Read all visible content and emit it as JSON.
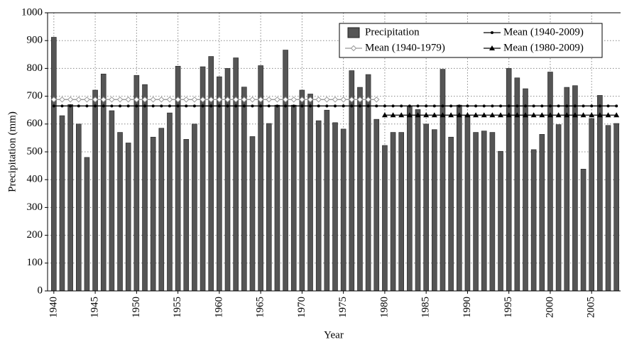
{
  "chart_data": {
    "type": "bar",
    "x_label": "Year",
    "y_label": "Precipitation (mm)",
    "categories": [
      "1940",
      null,
      null,
      null,
      null,
      "1945",
      null,
      null,
      null,
      null,
      "1950",
      null,
      null,
      null,
      null,
      "1955",
      null,
      null,
      null,
      null,
      "1960",
      null,
      null,
      null,
      null,
      "1965",
      null,
      null,
      null,
      null,
      "1970",
      null,
      null,
      null,
      null,
      "1975",
      null,
      null,
      null,
      null,
      "1980",
      null,
      null,
      null,
      null,
      "1985",
      null,
      null,
      null,
      null,
      "1990",
      null,
      null,
      null,
      null,
      "1995",
      null,
      null,
      null,
      null,
      "2000",
      null,
      null,
      null,
      null,
      "2005",
      null,
      null,
      null
    ],
    "series": [
      {
        "name": "Precipitation",
        "type": "bar",
        "color": "#555555",
        "values": [
          912,
          630,
          670,
          600,
          480,
          722,
          780,
          648,
          570,
          532,
          775,
          742,
          553,
          585,
          640,
          808,
          545,
          600,
          806,
          843,
          770,
          800,
          838,
          733,
          555,
          810,
          602,
          668,
          866,
          668,
          722,
          708,
          612,
          650,
          605,
          582,
          792,
          732,
          778,
          617,
          523,
          570,
          570,
          665,
          652,
          600,
          580,
          797,
          553,
          668,
          632,
          570,
          575,
          570,
          502,
          800,
          766,
          727,
          508,
          563,
          787,
          598,
          732,
          738,
          438,
          620,
          703,
          595,
          602
        ]
      },
      {
        "name": "Mean (1940-2009)",
        "type": "line",
        "marker": "circle",
        "color": "#000000",
        "values": [
          665,
          665,
          665,
          665,
          665,
          665,
          665,
          665,
          665,
          665,
          665,
          665,
          665,
          665,
          665,
          665,
          665,
          665,
          665,
          665,
          665,
          665,
          665,
          665,
          665,
          665,
          665,
          665,
          665,
          665,
          665,
          665,
          665,
          665,
          665,
          665,
          665,
          665,
          665,
          665,
          665,
          665,
          665,
          665,
          665,
          665,
          665,
          665,
          665,
          665,
          665,
          665,
          665,
          665,
          665,
          665,
          665,
          665,
          665,
          665,
          665,
          665,
          665,
          665,
          665,
          665,
          665,
          665,
          665
        ]
      },
      {
        "name": "Mean (1940-1979)",
        "type": "line",
        "marker": "diamond",
        "color": "#999999",
        "values": [
          688,
          688,
          688,
          688,
          688,
          688,
          688,
          688,
          688,
          688,
          688,
          688,
          688,
          688,
          688,
          688,
          688,
          688,
          688,
          688,
          688,
          688,
          688,
          688,
          688,
          688,
          688,
          688,
          688,
          688,
          688,
          688,
          688,
          688,
          688,
          688,
          688,
          688,
          688,
          688,
          null,
          null,
          null,
          null,
          null,
          null,
          null,
          null,
          null,
          null,
          null,
          null,
          null,
          null,
          null,
          null,
          null,
          null,
          null,
          null,
          null,
          null,
          null,
          null,
          null,
          null,
          null,
          null,
          null
        ]
      },
      {
        "name": "Mean (1980-2009)",
        "type": "line",
        "marker": "triangle",
        "color": "#000000",
        "values": [
          null,
          null,
          null,
          null,
          null,
          null,
          null,
          null,
          null,
          null,
          null,
          null,
          null,
          null,
          null,
          null,
          null,
          null,
          null,
          null,
          null,
          null,
          null,
          null,
          null,
          null,
          null,
          null,
          null,
          null,
          null,
          null,
          null,
          null,
          null,
          null,
          null,
          null,
          null,
          null,
          632,
          632,
          632,
          632,
          632,
          632,
          632,
          632,
          632,
          632,
          632,
          632,
          632,
          632,
          632,
          632,
          632,
          632,
          632,
          632,
          632,
          632,
          632,
          632,
          632,
          632,
          632,
          632,
          632
        ]
      }
    ],
    "ylim": [
      0,
      1000
    ],
    "yticks": [
      0,
      100,
      200,
      300,
      400,
      500,
      600,
      700,
      800,
      900,
      1000
    ],
    "grid": true
  }
}
